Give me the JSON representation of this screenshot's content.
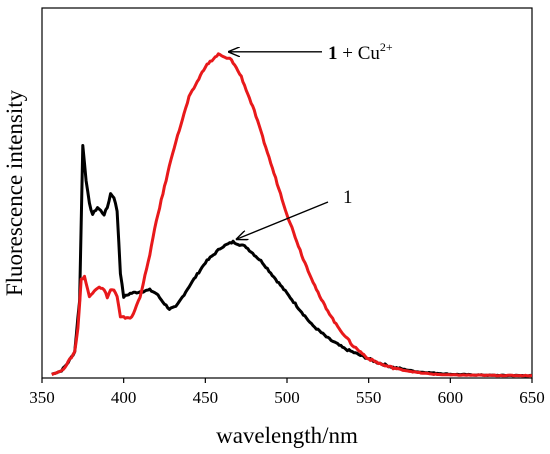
{
  "chart_data": {
    "type": "line",
    "xlabel": "wavelength/nm",
    "ylabel": "Fluorescence intensity",
    "xlim": [
      350,
      650
    ],
    "ylim": [
      0,
      1
    ],
    "x_ticks": [
      "350",
      "400",
      "450",
      "500",
      "550",
      "600",
      "650"
    ],
    "y_ticks_shown": false,
    "grid": false,
    "legend": "none",
    "annotations": [
      {
        "id": "cu",
        "text_bold": "1",
        "text_rest": " + Cu",
        "superscript": "2+",
        "points_to": [
          462,
          0.925
        ]
      },
      {
        "id": "free",
        "text_bold": "",
        "text_rest": "1",
        "superscript": "",
        "points_to": [
          468,
          0.392
        ]
      }
    ],
    "series": [
      {
        "id": "free",
        "color": "#000000",
        "x": [
          356,
          362,
          366,
          370,
          373,
          375,
          377,
          379,
          381,
          384,
          388,
          390,
          392,
          394,
          396,
          398,
          400,
          404,
          410,
          416,
          420,
          425,
          428,
          432,
          440,
          450,
          460,
          467,
          475,
          485,
          495,
          505,
          515,
          525,
          535,
          545,
          555,
          565,
          580,
          600,
          625,
          650
        ],
        "y": [
          0.005,
          0.015,
          0.04,
          0.07,
          0.22,
          0.67,
          0.57,
          0.5,
          0.47,
          0.49,
          0.47,
          0.49,
          0.53,
          0.52,
          0.48,
          0.3,
          0.23,
          0.24,
          0.245,
          0.25,
          0.24,
          0.21,
          0.195,
          0.2,
          0.26,
          0.33,
          0.375,
          0.39,
          0.375,
          0.33,
          0.27,
          0.21,
          0.15,
          0.11,
          0.08,
          0.06,
          0.04,
          0.025,
          0.012,
          0.005,
          0.002,
          0.001
        ]
      },
      {
        "id": "cu",
        "color": "#e8191b",
        "x": [
          356,
          362,
          366,
          370,
          372,
          374,
          376,
          379,
          382,
          385,
          388,
          390,
          392,
          394,
          396,
          398,
          400,
          405,
          410,
          415,
          420,
          430,
          440,
          450,
          458,
          462,
          466,
          472,
          480,
          490,
          500,
          510,
          520,
          530,
          540,
          550,
          560,
          570,
          580,
          590,
          600,
          620,
          650
        ],
        "y": [
          0.005,
          0.015,
          0.04,
          0.07,
          0.14,
          0.28,
          0.29,
          0.23,
          0.25,
          0.26,
          0.25,
          0.23,
          0.25,
          0.25,
          0.23,
          0.17,
          0.17,
          0.17,
          0.23,
          0.33,
          0.45,
          0.65,
          0.81,
          0.9,
          0.935,
          0.925,
          0.92,
          0.87,
          0.77,
          0.62,
          0.47,
          0.34,
          0.23,
          0.15,
          0.09,
          0.05,
          0.03,
          0.018,
          0.01,
          0.005,
          0.003,
          0.002,
          0.001
        ]
      }
    ]
  }
}
